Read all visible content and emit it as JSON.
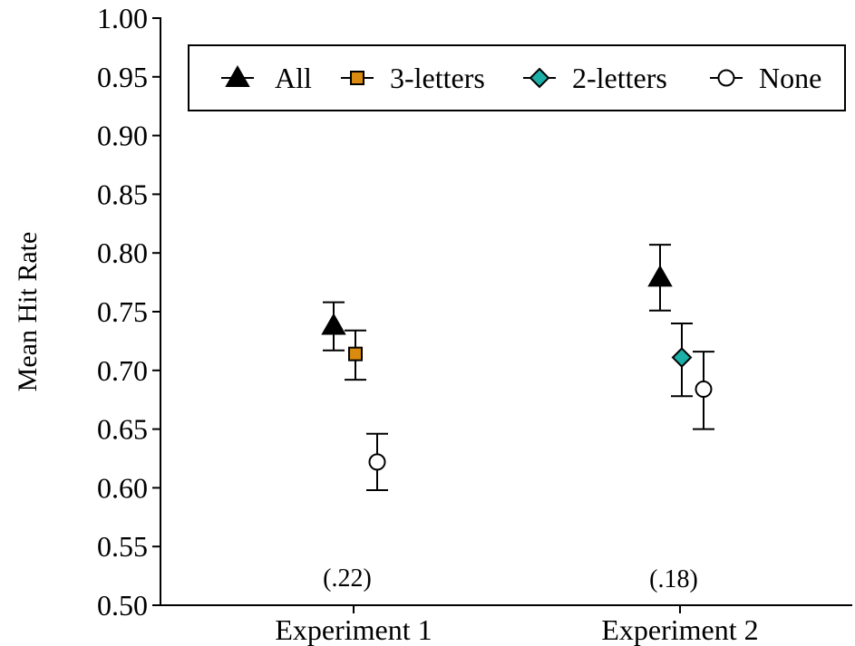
{
  "chart_data": {
    "type": "scatter",
    "ylabel": "Mean Hit Rate",
    "xlabel": "",
    "ylim": [
      0.5,
      1.0
    ],
    "yticks": [
      "0.50",
      "0.55",
      "0.60",
      "0.65",
      "0.70",
      "0.75",
      "0.80",
      "0.85",
      "0.90",
      "0.95",
      "1.00"
    ],
    "categories": [
      "Experiment 1",
      "Experiment 2"
    ],
    "legend_position": "top-right",
    "series": [
      {
        "name": "All",
        "marker": "triangle",
        "fill": "#000000",
        "points": [
          {
            "x": "Experiment 1",
            "y": 0.738,
            "err_low": 0.717,
            "err_high": 0.758
          },
          {
            "x": "Experiment 2",
            "y": 0.779,
            "err_low": 0.751,
            "err_high": 0.807
          }
        ]
      },
      {
        "name": "3-letters",
        "marker": "square",
        "fill": "#D98A0F",
        "points": [
          {
            "x": "Experiment 1",
            "y": 0.714,
            "err_low": 0.692,
            "err_high": 0.734
          }
        ]
      },
      {
        "name": "2-letters",
        "marker": "diamond",
        "fill": "#1BAFA8",
        "points": [
          {
            "x": "Experiment 2",
            "y": 0.711,
            "err_low": 0.678,
            "err_high": 0.74
          }
        ]
      },
      {
        "name": "None",
        "marker": "circle",
        "fill": "#FFFFFF",
        "points": [
          {
            "x": "Experiment 1",
            "y": 0.622,
            "err_low": 0.598,
            "err_high": 0.646
          },
          {
            "x": "Experiment 2",
            "y": 0.684,
            "err_low": 0.65,
            "err_high": 0.716
          }
        ]
      }
    ],
    "annotations": [
      {
        "category": "Experiment 1",
        "text": "(.22)",
        "y": 0.524
      },
      {
        "category": "Experiment 2",
        "text": "(.18)",
        "y": 0.523
      }
    ]
  }
}
